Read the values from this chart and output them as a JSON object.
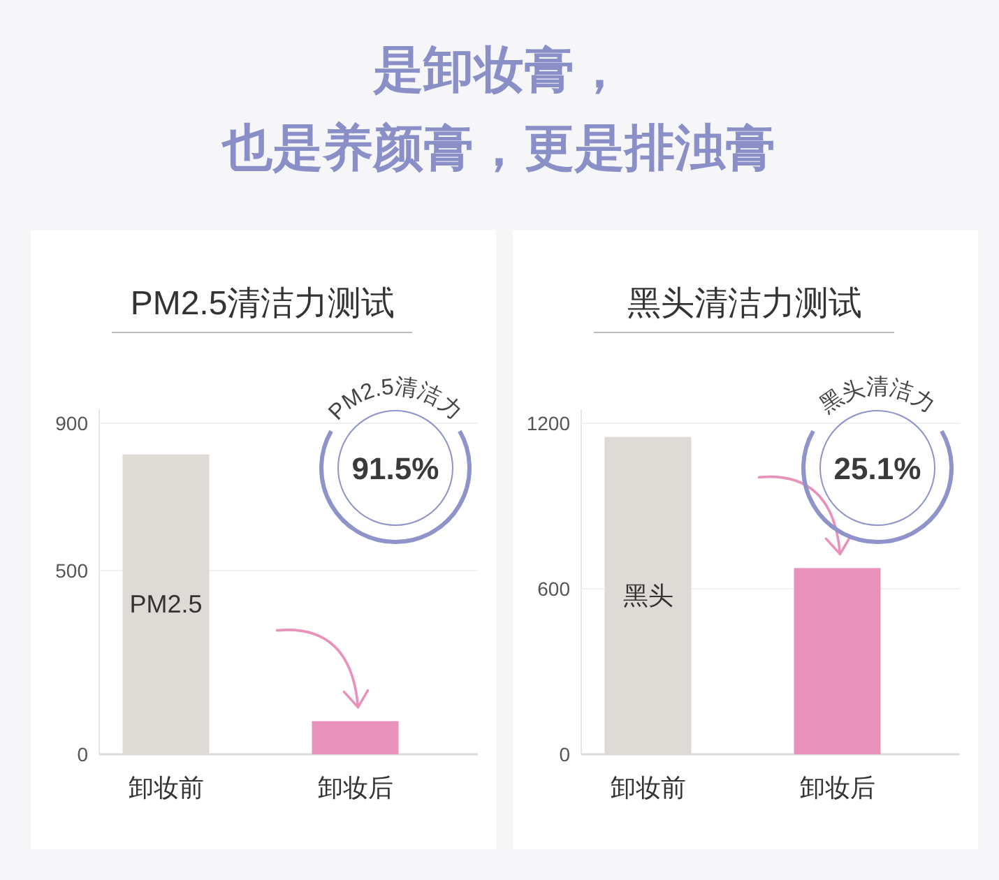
{
  "chart_data": [
    {
      "type": "other",
      "title": "是卸妆膏，",
      "subtitle": "也是养颜膏，更是排浊膏"
    },
    {
      "type": "bar",
      "title": "PM2.5清洁力测试",
      "categories": [
        "卸妆前",
        "卸妆后"
      ],
      "values": [
        815,
        90
      ],
      "colors": [
        "#dedad5",
        "#e891bb"
      ],
      "ylim": [
        0,
        900
      ],
      "yticks": [
        0,
        500,
        900
      ],
      "grid": "y",
      "annotations": [
        "PM2.5",
        "PM2.5清洁力",
        "91.5%"
      ]
    },
    {
      "type": "bar",
      "title": "黑头清洁力测试",
      "categories": [
        "卸妆前",
        "卸妆后"
      ],
      "values": [
        1150,
        675
      ],
      "colors": [
        "#dedad5",
        "#e891bb"
      ],
      "ylim": [
        0,
        1200
      ],
      "yticks": [
        0,
        600,
        1200
      ],
      "grid": "y",
      "annotations": [
        "黑头",
        "黑头清洁力",
        "25.1%"
      ]
    }
  ]
}
